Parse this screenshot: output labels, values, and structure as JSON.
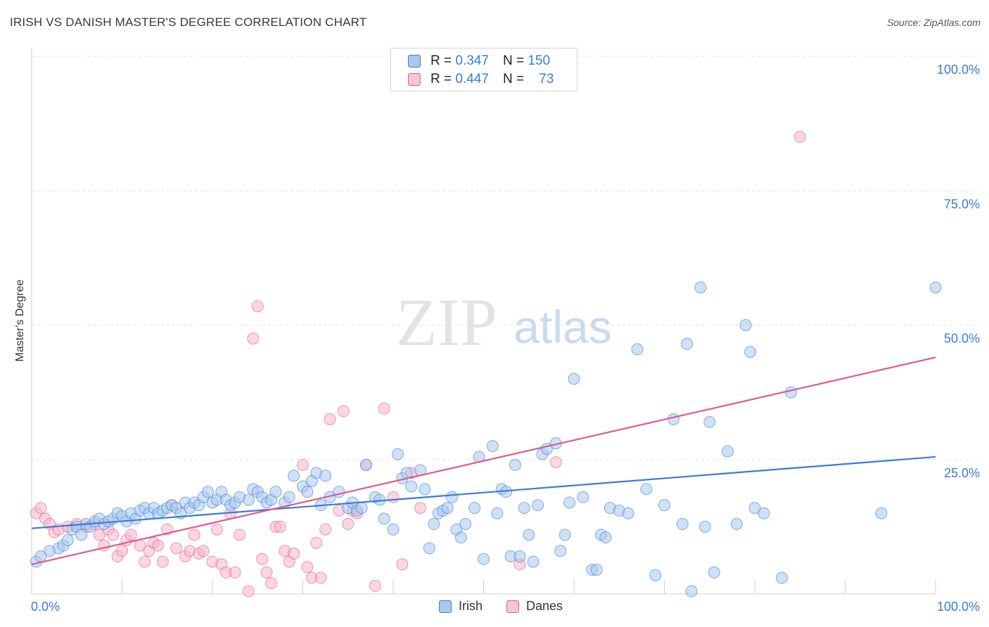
{
  "title": "IRISH VS DANISH MASTER'S DEGREE CORRELATION CHART",
  "source": "Source: ZipAtlas.com",
  "watermark": {
    "zip": "ZIP",
    "atlas": "atlas"
  },
  "legend": {
    "irish": {
      "r_label": "R =",
      "r_value": "0.347",
      "n_label": "N =",
      "n_value": "150"
    },
    "danes": {
      "r_label": "R =",
      "r_value": "0.447",
      "n_label": "N =",
      "n_value": "73"
    }
  },
  "colors": {
    "irish": "#3a7bd5",
    "danes": "#e05a8a",
    "irish_fill": "#aac8ef",
    "danes_fill": "#f5b6c9",
    "axis_text": "#3a7bd5"
  },
  "chart_data": {
    "type": "scatter",
    "title": "IRISH VS DANISH MASTER'S DEGREE CORRELATION CHART",
    "xlabel": "",
    "ylabel": "Master's Degree",
    "xlim": [
      0,
      100
    ],
    "ylim": [
      0,
      100
    ],
    "x_tick_labels": [
      "0.0%",
      "100.0%"
    ],
    "y_tick_labels": [
      "25.0%",
      "50.0%",
      "75.0%",
      "100.0%"
    ],
    "y_ticks": [
      25,
      50,
      75,
      100
    ],
    "grid": true,
    "legend_position": "top-center",
    "series": [
      {
        "name": "Irish",
        "color": "#3a7bd5",
        "points": [
          [
            0.5,
            6
          ],
          [
            1,
            7
          ],
          [
            2,
            8
          ],
          [
            3,
            8.5
          ],
          [
            3.5,
            9
          ],
          [
            4,
            10
          ],
          [
            4.5,
            12
          ],
          [
            5,
            12.5
          ],
          [
            5.5,
            11
          ],
          [
            6,
            13
          ],
          [
            6.5,
            12.5
          ],
          [
            7,
            13.5
          ],
          [
            7.5,
            14
          ],
          [
            8,
            13
          ],
          [
            8.5,
            13.5
          ],
          [
            9,
            14
          ],
          [
            9.5,
            15
          ],
          [
            10,
            14.5
          ],
          [
            10.5,
            13.5
          ],
          [
            11,
            15
          ],
          [
            11.5,
            14
          ],
          [
            12,
            15.5
          ],
          [
            12.5,
            16
          ],
          [
            13,
            15
          ],
          [
            13.5,
            16
          ],
          [
            14,
            15
          ],
          [
            14.5,
            15.5
          ],
          [
            15,
            16
          ],
          [
            15.5,
            16.5
          ],
          [
            16,
            16
          ],
          [
            16.5,
            15
          ],
          [
            17,
            17
          ],
          [
            17.5,
            16
          ],
          [
            18,
            17
          ],
          [
            18.5,
            16.5
          ],
          [
            19,
            18
          ],
          [
            19.5,
            19
          ],
          [
            20,
            17
          ],
          [
            20.5,
            17.5
          ],
          [
            21,
            19
          ],
          [
            21.5,
            17.5
          ],
          [
            22,
            16.5
          ],
          [
            22.5,
            17
          ],
          [
            23,
            18
          ],
          [
            24,
            17.5
          ],
          [
            24.5,
            19.5
          ],
          [
            25,
            19
          ],
          [
            25.5,
            18
          ],
          [
            26,
            17
          ],
          [
            26.5,
            17.5
          ],
          [
            27,
            19
          ],
          [
            28,
            17
          ],
          [
            28.5,
            18
          ],
          [
            29,
            22
          ],
          [
            30,
            20
          ],
          [
            30.5,
            19
          ],
          [
            31,
            21
          ],
          [
            31.5,
            22.5
          ],
          [
            32,
            16.5
          ],
          [
            32.5,
            22
          ],
          [
            33,
            18
          ],
          [
            34,
            19
          ],
          [
            35,
            16
          ],
          [
            35.5,
            17
          ],
          [
            36,
            15.5
          ],
          [
            36.5,
            16
          ],
          [
            37,
            24
          ],
          [
            38,
            18
          ],
          [
            38.5,
            17.5
          ],
          [
            39,
            14
          ],
          [
            40,
            12
          ],
          [
            40.5,
            26
          ],
          [
            41,
            21.5
          ],
          [
            41.5,
            22.5
          ],
          [
            42,
            20
          ],
          [
            43,
            23
          ],
          [
            43.5,
            19.5
          ],
          [
            44,
            8.5
          ],
          [
            44.5,
            13
          ],
          [
            45,
            15
          ],
          [
            45.5,
            15.5
          ],
          [
            46,
            16
          ],
          [
            46.5,
            18
          ],
          [
            47,
            12
          ],
          [
            47.5,
            10.5
          ],
          [
            48,
            13
          ],
          [
            49,
            16
          ],
          [
            49.5,
            25.5
          ],
          [
            50,
            6.5
          ],
          [
            51,
            27.5
          ],
          [
            51.5,
            15
          ],
          [
            52,
            19.5
          ],
          [
            52.5,
            19
          ],
          [
            53,
            7
          ],
          [
            53.5,
            24
          ],
          [
            54,
            7
          ],
          [
            54.5,
            16
          ],
          [
            55,
            11
          ],
          [
            55.5,
            6
          ],
          [
            56,
            16.5
          ],
          [
            56.5,
            26
          ],
          [
            57,
            27
          ],
          [
            58,
            28
          ],
          [
            58.5,
            8
          ],
          [
            59,
            11
          ],
          [
            59.5,
            17
          ],
          [
            60,
            40
          ],
          [
            61,
            18
          ],
          [
            62,
            4.5
          ],
          [
            62.5,
            4.5
          ],
          [
            63,
            11
          ],
          [
            63.5,
            10.5
          ],
          [
            64,
            16
          ],
          [
            65,
            15.5
          ],
          [
            66,
            15
          ],
          [
            67,
            45.5
          ],
          [
            68,
            19.5
          ],
          [
            69,
            3.5
          ],
          [
            70,
            16.5
          ],
          [
            71,
            32.5
          ],
          [
            72,
            13
          ],
          [
            72.5,
            46.5
          ],
          [
            73,
            0.5
          ],
          [
            74,
            57
          ],
          [
            74.5,
            12.5
          ],
          [
            75,
            32
          ],
          [
            75.5,
            4
          ],
          [
            77,
            26.5
          ],
          [
            78,
            13
          ],
          [
            79,
            50
          ],
          [
            79.5,
            45
          ],
          [
            80,
            16
          ],
          [
            81,
            15
          ],
          [
            83,
            3
          ],
          [
            84,
            37.5
          ],
          [
            94,
            15
          ],
          [
            100,
            57
          ]
        ]
      },
      {
        "name": "Danes",
        "color": "#e05a8a",
        "points": [
          [
            0.5,
            15
          ],
          [
            1,
            16
          ],
          [
            1.5,
            14
          ],
          [
            2,
            13
          ],
          [
            2.5,
            11.5
          ],
          [
            3,
            12
          ],
          [
            4,
            12.5
          ],
          [
            5,
            13
          ],
          [
            6,
            12.5
          ],
          [
            7,
            13
          ],
          [
            7.5,
            11
          ],
          [
            8,
            9
          ],
          [
            8.5,
            12
          ],
          [
            9,
            11
          ],
          [
            9.5,
            7
          ],
          [
            10,
            8
          ],
          [
            10.5,
            10
          ],
          [
            11,
            11
          ],
          [
            12,
            9
          ],
          [
            12.5,
            6
          ],
          [
            13,
            8
          ],
          [
            13.5,
            9.5
          ],
          [
            14,
            9
          ],
          [
            14.5,
            6
          ],
          [
            15,
            12
          ],
          [
            15.5,
            16.5
          ],
          [
            16,
            8.5
          ],
          [
            17,
            7
          ],
          [
            17.5,
            8
          ],
          [
            18,
            11
          ],
          [
            18.5,
            7.5
          ],
          [
            19,
            8
          ],
          [
            20,
            6
          ],
          [
            20.5,
            12
          ],
          [
            21,
            5.5
          ],
          [
            21.5,
            4
          ],
          [
            22,
            15
          ],
          [
            22.5,
            4
          ],
          [
            23,
            11
          ],
          [
            24,
            0.5
          ],
          [
            24.5,
            47.5
          ],
          [
            25,
            53.5
          ],
          [
            25.5,
            6.5
          ],
          [
            26,
            4
          ],
          [
            26.5,
            2
          ],
          [
            27,
            12.5
          ],
          [
            27.5,
            12.5
          ],
          [
            28,
            8
          ],
          [
            28.5,
            6
          ],
          [
            29,
            7.5
          ],
          [
            30,
            24
          ],
          [
            30.5,
            5
          ],
          [
            31,
            3
          ],
          [
            31.5,
            9.5
          ],
          [
            32,
            3
          ],
          [
            32.5,
            12
          ],
          [
            33,
            32.5
          ],
          [
            34,
            15.5
          ],
          [
            34.5,
            34
          ],
          [
            35,
            13
          ],
          [
            35.5,
            15.5
          ],
          [
            36,
            15
          ],
          [
            37,
            24
          ],
          [
            38,
            1.5
          ],
          [
            39,
            34.5
          ],
          [
            40,
            18
          ],
          [
            41,
            5.5
          ],
          [
            42,
            22.5
          ],
          [
            43,
            16
          ],
          [
            54,
            5.5
          ],
          [
            58,
            24.5
          ],
          [
            85,
            85
          ]
        ]
      }
    ],
    "trendlines": [
      {
        "series": "Irish",
        "x": [
          0,
          100
        ],
        "y": [
          12.2,
          25.5
        ]
      },
      {
        "series": "Danes",
        "x": [
          0,
          100
        ],
        "y": [
          5.5,
          44
        ]
      }
    ]
  }
}
